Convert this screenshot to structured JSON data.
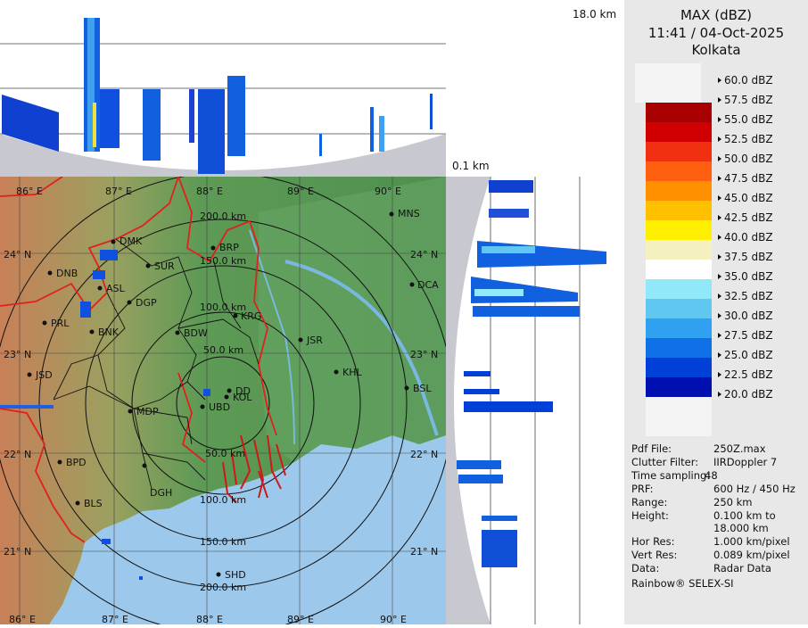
{
  "legend": {
    "title": "MAX (dBZ)",
    "datetime": "11:41 / 04-Oct-2025",
    "station": "Kolkata",
    "scale": [
      {
        "label": "60.0 dBZ",
        "color": ""
      },
      {
        "label": "57.5 dBZ",
        "color": "#ffffff"
      },
      {
        "label": "55.0 dBZ",
        "color": "#a80000"
      },
      {
        "label": "52.5 dBZ",
        "color": "#d00000"
      },
      {
        "label": "50.0 dBZ",
        "color": "#f03010"
      },
      {
        "label": "47.5 dBZ",
        "color": "#ff6010"
      },
      {
        "label": "45.0 dBZ",
        "color": "#ff9000"
      },
      {
        "label": "42.5 dBZ",
        "color": "#ffc000"
      },
      {
        "label": "40.0 dBZ",
        "color": "#fff000"
      },
      {
        "label": "37.5 dBZ",
        "color": "#f5f0c0"
      },
      {
        "label": "35.0 dBZ",
        "color": "#ffffff"
      },
      {
        "label": "32.5 dBZ",
        "color": "#90e8f8"
      },
      {
        "label": "30.0 dBZ",
        "color": "#60c8f0"
      },
      {
        "label": "27.5 dBZ",
        "color": "#30a0f0"
      },
      {
        "label": "25.0 dBZ",
        "color": "#1070e8"
      },
      {
        "label": "22.5 dBZ",
        "color": "#0040d8"
      },
      {
        "label": "20.0 dBZ",
        "color": "#0010b0"
      }
    ],
    "bottom_swatch_color": "#000090"
  },
  "info": [
    {
      "key": "Pdf File:",
      "value": "250Z.max"
    },
    {
      "key": "Clutter Filter:",
      "value": "IIRDoppler 7"
    },
    {
      "key": "Time sampling:",
      "value": "48"
    },
    {
      "key": "PRF:",
      "value": "600 Hz / 450 Hz"
    },
    {
      "key": "Range:",
      "value": "250 km"
    },
    {
      "key": "Height:",
      "value": "0.100 km to"
    },
    {
      "key": "",
      "value": "18.000 km"
    },
    {
      "key": "Hor Res:",
      "value": "1.000 km/pixel"
    },
    {
      "key": "Vert Res:",
      "value": "0.089 km/pixel"
    },
    {
      "key": "Data:",
      "value": "Radar Data"
    }
  ],
  "footer": "Rainbow® SELEX-SI",
  "height_labels": {
    "max": "18.0 km",
    "min": "0.1 km"
  },
  "map": {
    "longitudes": [
      "86° E",
      "87° E",
      "88° E",
      "89° E",
      "90° E"
    ],
    "latitudes": [
      "24° N",
      "23° N",
      "22° N",
      "21° N"
    ],
    "range_rings": [
      "50.0 km",
      "100.0 km",
      "150.0 km",
      "200.0 km"
    ],
    "range_rings_bottom": [
      "50.0 km",
      "100.0 km",
      "150.0 km",
      "200.0 km"
    ],
    "cities": [
      {
        "name": "DMK"
      },
      {
        "name": "BRP"
      },
      {
        "name": "MNS"
      },
      {
        "name": "DNB"
      },
      {
        "name": "SUR"
      },
      {
        "name": "ASL"
      },
      {
        "name": "DGP"
      },
      {
        "name": "DCA"
      },
      {
        "name": "PRL"
      },
      {
        "name": "KRG"
      },
      {
        "name": "BNK"
      },
      {
        "name": "BDW"
      },
      {
        "name": "JSR"
      },
      {
        "name": "KHL"
      },
      {
        "name": "JSD"
      },
      {
        "name": "DD"
      },
      {
        "name": "KOL"
      },
      {
        "name": "BSL"
      },
      {
        "name": "MDP"
      },
      {
        "name": "UBD"
      },
      {
        "name": "BPD"
      },
      {
        "name": "DGH"
      },
      {
        "name": "BLS"
      },
      {
        "name": "SHD"
      }
    ]
  },
  "colors": {
    "sea": "#9cc8ec",
    "land_low": "#5a9a5a",
    "land_high": "#c87850",
    "border": "#e02020",
    "district": "#000000"
  }
}
